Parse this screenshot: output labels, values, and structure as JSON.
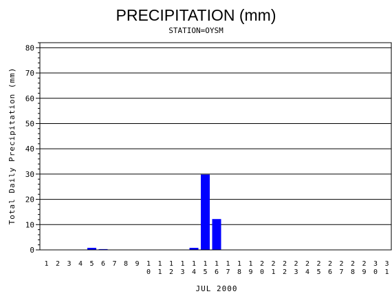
{
  "chart_data": {
    "type": "bar",
    "title": "PRECIPITATION (mm)",
    "subtitle": "STATION=OYSM",
    "xlabel": "JUL 2000",
    "ylabel": "Total Daily Precipitation (mm)",
    "ylim": [
      0,
      82
    ],
    "yticks": [
      0,
      10,
      20,
      30,
      40,
      50,
      60,
      70,
      80
    ],
    "grid": true,
    "bar_color": "#0000ff",
    "categories": [
      "1",
      "2",
      "3",
      "4",
      "5",
      "6",
      "7",
      "8",
      "9",
      "10",
      "11",
      "12",
      "13",
      "14",
      "15",
      "16",
      "17",
      "18",
      "19",
      "20",
      "21",
      "22",
      "23",
      "24",
      "25",
      "26",
      "27",
      "28",
      "29",
      "30",
      "31"
    ],
    "values": [
      0,
      0,
      0,
      0,
      0.8,
      0.3,
      0,
      0,
      0,
      0,
      0,
      0,
      0,
      0.8,
      29.8,
      12.2,
      0,
      0,
      0,
      0,
      0,
      0,
      0,
      0,
      0,
      0,
      0,
      0,
      0,
      0,
      0
    ]
  }
}
